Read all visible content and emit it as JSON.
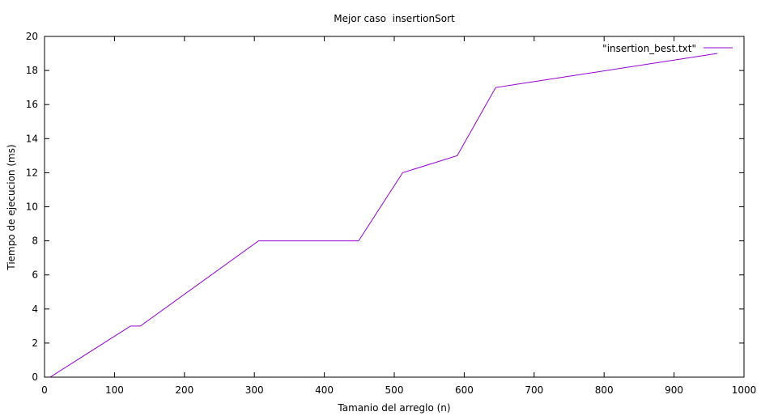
{
  "chart_data": {
    "type": "line",
    "title": "Mejor caso  insertionSort",
    "xlabel": "Tamanio del arreglo (n)",
    "ylabel": "Tiempo de ejecucion (ms)",
    "xlim": [
      0,
      1000
    ],
    "ylim": [
      0,
      20
    ],
    "xticks": [
      0,
      100,
      200,
      300,
      400,
      500,
      600,
      700,
      800,
      900,
      1000
    ],
    "yticks": [
      0,
      2,
      4,
      6,
      8,
      10,
      12,
      14,
      16,
      18,
      20
    ],
    "grid": false,
    "legend_position": "top-right",
    "series": [
      {
        "name": "\"insertion_best.txt\"",
        "color": "#9400d3",
        "x": [
          5,
          8,
          123,
          137,
          306,
          449,
          512,
          590,
          645,
          962
        ],
        "y": [
          0,
          0,
          3,
          3,
          8,
          8,
          12,
          13,
          17,
          19
        ]
      }
    ]
  }
}
